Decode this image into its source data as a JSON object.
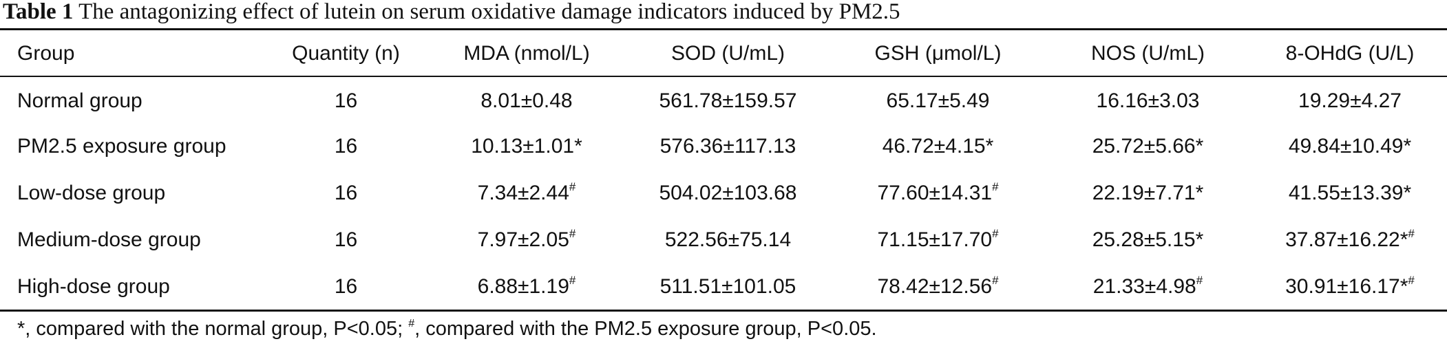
{
  "caption": {
    "label": "Table 1",
    "text": "The antagonizing effect of lutein on serum oxidative damage indicators induced by PM2.5"
  },
  "table": {
    "headers": [
      "Group",
      "Quantity (n)",
      "MDA (nmol/L)",
      "SOD (U/mL)",
      "GSH (μmol/L)",
      "NOS (U/mL)",
      "8-OHdG (U/L)"
    ],
    "rows": [
      {
        "group": "Normal group",
        "n": "16",
        "cells": [
          {
            "value": "8.01±0.48",
            "mark": ""
          },
          {
            "value": "561.78±159.57",
            "mark": ""
          },
          {
            "value": "65.17±5.49",
            "mark": ""
          },
          {
            "value": "16.16±3.03",
            "mark": ""
          },
          {
            "value": "19.29±4.27",
            "mark": ""
          }
        ]
      },
      {
        "group": "PM2.5 exposure group",
        "n": "16",
        "cells": [
          {
            "value": "10.13±1.01*",
            "mark": ""
          },
          {
            "value": "576.36±117.13",
            "mark": ""
          },
          {
            "value": "46.72±4.15*",
            "mark": ""
          },
          {
            "value": "25.72±5.66*",
            "mark": ""
          },
          {
            "value": "49.84±10.49*",
            "mark": ""
          }
        ]
      },
      {
        "group": "Low-dose group",
        "n": "16",
        "cells": [
          {
            "value": "7.34±2.44",
            "mark": "#"
          },
          {
            "value": "504.02±103.68",
            "mark": ""
          },
          {
            "value": "77.60±14.31",
            "mark": "#"
          },
          {
            "value": "22.19±7.71*",
            "mark": ""
          },
          {
            "value": "41.55±13.39*",
            "mark": ""
          }
        ]
      },
      {
        "group": "Medium-dose group",
        "n": "16",
        "cells": [
          {
            "value": "7.97±2.05",
            "mark": "#"
          },
          {
            "value": "522.56±75.14",
            "mark": ""
          },
          {
            "value": "71.15±17.70",
            "mark": "#"
          },
          {
            "value": "25.28±5.15*",
            "mark": ""
          },
          {
            "value": "37.87±16.22*",
            "mark": "#"
          }
        ]
      },
      {
        "group": "High-dose group",
        "n": "16",
        "cells": [
          {
            "value": "6.88±1.19",
            "mark": "#"
          },
          {
            "value": "511.51±101.05",
            "mark": ""
          },
          {
            "value": "78.42±12.56",
            "mark": "#"
          },
          {
            "value": "21.33±4.98",
            "mark": "#"
          },
          {
            "value": "30.91±16.17*",
            "mark": "#"
          }
        ]
      }
    ]
  },
  "footnote": {
    "part1": "*, compared with the normal group, P<0.05; ",
    "mark": "#",
    "part2": ", compared with the PM2.5 exposure group, P<0.05."
  }
}
